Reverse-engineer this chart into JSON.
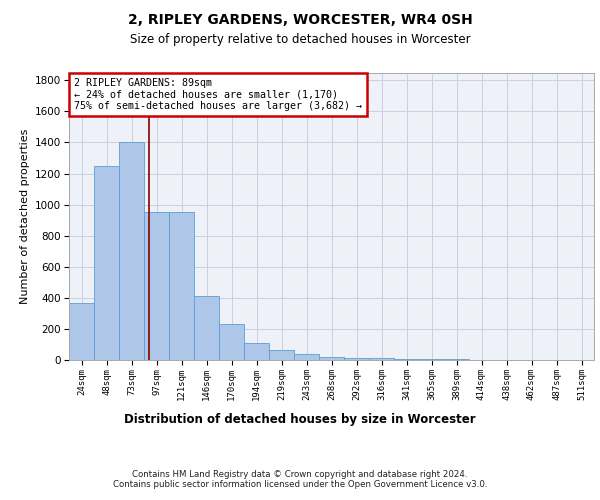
{
  "title1": "2, RIPLEY GARDENS, WORCESTER, WR4 0SH",
  "title2": "Size of property relative to detached houses in Worcester",
  "xlabel": "Distribution of detached houses by size in Worcester",
  "ylabel": "Number of detached properties",
  "categories": [
    "24sqm",
    "48sqm",
    "73sqm",
    "97sqm",
    "121sqm",
    "146sqm",
    "170sqm",
    "194sqm",
    "219sqm",
    "243sqm",
    "268sqm",
    "292sqm",
    "316sqm",
    "341sqm",
    "365sqm",
    "389sqm",
    "414sqm",
    "438sqm",
    "462sqm",
    "487sqm",
    "511sqm"
  ],
  "values": [
    370,
    1250,
    1400,
    950,
    950,
    410,
    230,
    110,
    65,
    40,
    20,
    10,
    10,
    5,
    5,
    5,
    3,
    3,
    2,
    2,
    2
  ],
  "bar_color": "#aec6e8",
  "bar_edge_color": "#5a9fd4",
  "grid_color": "#c8d0de",
  "vline_color": "#8b0000",
  "vline_x_idx": 2.7,
  "annotation_text": "2 RIPLEY GARDENS: 89sqm\n← 24% of detached houses are smaller (1,170)\n75% of semi-detached houses are larger (3,682) →",
  "annotation_box_color": "#ffffff",
  "annotation_box_edge": "#cc0000",
  "ylim": [
    0,
    1850
  ],
  "yticks": [
    0,
    200,
    400,
    600,
    800,
    1000,
    1200,
    1400,
    1600,
    1800
  ],
  "footer": "Contains HM Land Registry data © Crown copyright and database right 2024.\nContains public sector information licensed under the Open Government Licence v3.0.",
  "bg_color": "#ffffff",
  "plot_bg_color": "#eef2f8"
}
